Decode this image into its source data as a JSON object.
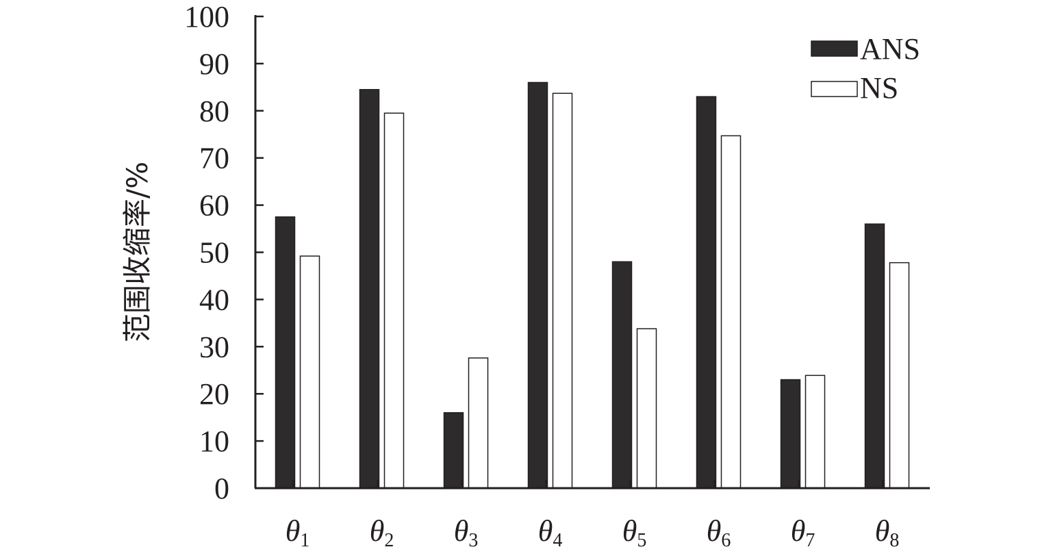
{
  "chart_data": {
    "type": "bar",
    "ylabel": "范围收缩率/%",
    "ylim": [
      0,
      100
    ],
    "yticks": [
      0,
      10,
      20,
      30,
      40,
      50,
      60,
      70,
      80,
      90,
      100
    ],
    "categories": [
      {
        "base": "θ",
        "sub": "1"
      },
      {
        "base": "θ",
        "sub": "2"
      },
      {
        "base": "θ",
        "sub": "3"
      },
      {
        "base": "θ",
        "sub": "4"
      },
      {
        "base": "θ",
        "sub": "5"
      },
      {
        "base": "θ",
        "sub": "6"
      },
      {
        "base": "θ",
        "sub": "7"
      },
      {
        "base": "θ",
        "sub": "8"
      }
    ],
    "series": [
      {
        "name": "ANS",
        "color": "#2e2b2c",
        "values": [
          57.5,
          84.5,
          16,
          86,
          48,
          83,
          23,
          56
        ]
      },
      {
        "name": "NS",
        "color": "#ffffff",
        "values": [
          49.2,
          79.5,
          27.6,
          83.7,
          33.8,
          74.7,
          23.9,
          47.8
        ]
      }
    ],
    "legend_position": "top-right",
    "grid": false
  }
}
